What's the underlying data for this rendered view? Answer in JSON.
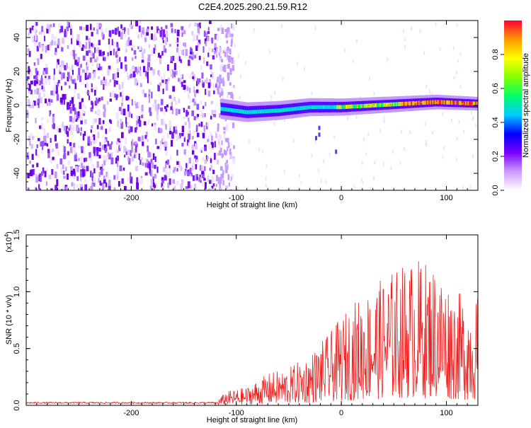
{
  "title": "C2E4.2025.290.21.59.R12",
  "chart_data": [
    {
      "type": "heatmap",
      "name": "spectrogram",
      "title": "C2E4.2025.290.21.59.R12",
      "xlabel": "Height of straight line (km)",
      "ylabel": "Frequency (Hz)",
      "xlim": [
        -300,
        130
      ],
      "ylim": [
        -50,
        50
      ],
      "xticks": [
        -200,
        -100,
        0,
        100
      ],
      "yticks": [
        -40,
        -20,
        0,
        20,
        40
      ],
      "noise_region_x": [
        -300,
        -103
      ],
      "signal_onset_x": -115,
      "ridge": [
        {
          "x": -115,
          "y": -2
        },
        {
          "x": -90,
          "y": -4
        },
        {
          "x": -60,
          "y": -3
        },
        {
          "x": -30,
          "y": -1
        },
        {
          "x": 0,
          "y": -1
        },
        {
          "x": 30,
          "y": 0
        },
        {
          "x": 60,
          "y": 1
        },
        {
          "x": 90,
          "y": 2
        },
        {
          "x": 130,
          "y": 1
        }
      ],
      "colorbar": {
        "label": "Normalized spectral amplitude",
        "range": [
          0,
          1
        ],
        "ticks": [
          "0.0",
          "0.2",
          "0.4",
          "0.6",
          "0.8"
        ],
        "colors": [
          "#ffffff",
          "#cc99ff",
          "#7700ff",
          "#0000ff",
          "#00ccff",
          "#00ff66",
          "#88ff00",
          "#ffff00",
          "#ff9900",
          "#ff0033"
        ]
      }
    },
    {
      "type": "line",
      "name": "snr",
      "xlabel": "Height of straight line (km)",
      "ylabel": "SNR (10 * v/v)",
      "y_scale_label": "(x10",
      "y_scale_exp": "4",
      "xlim": [
        -300,
        130
      ],
      "ylim": [
        0,
        1.5
      ],
      "xticks": [
        -200,
        -100,
        0,
        100
      ],
      "yticks": [
        "0.0",
        "0.5",
        "1.0",
        "1.5"
      ],
      "color": "#ee2222",
      "envelope": [
        {
          "x": -300,
          "y": 0.03
        },
        {
          "x": -120,
          "y": 0.03
        },
        {
          "x": -110,
          "y": 0.12
        },
        {
          "x": -90,
          "y": 0.16
        },
        {
          "x": -70,
          "y": 0.28
        },
        {
          "x": -50,
          "y": 0.33
        },
        {
          "x": -30,
          "y": 0.45
        },
        {
          "x": -10,
          "y": 0.65
        },
        {
          "x": 10,
          "y": 0.9
        },
        {
          "x": 30,
          "y": 1.05
        },
        {
          "x": 50,
          "y": 1.2
        },
        {
          "x": 70,
          "y": 1.3
        },
        {
          "x": 90,
          "y": 1.25
        },
        {
          "x": 110,
          "y": 1.0
        },
        {
          "x": 130,
          "y": 0.95
        }
      ]
    }
  ]
}
